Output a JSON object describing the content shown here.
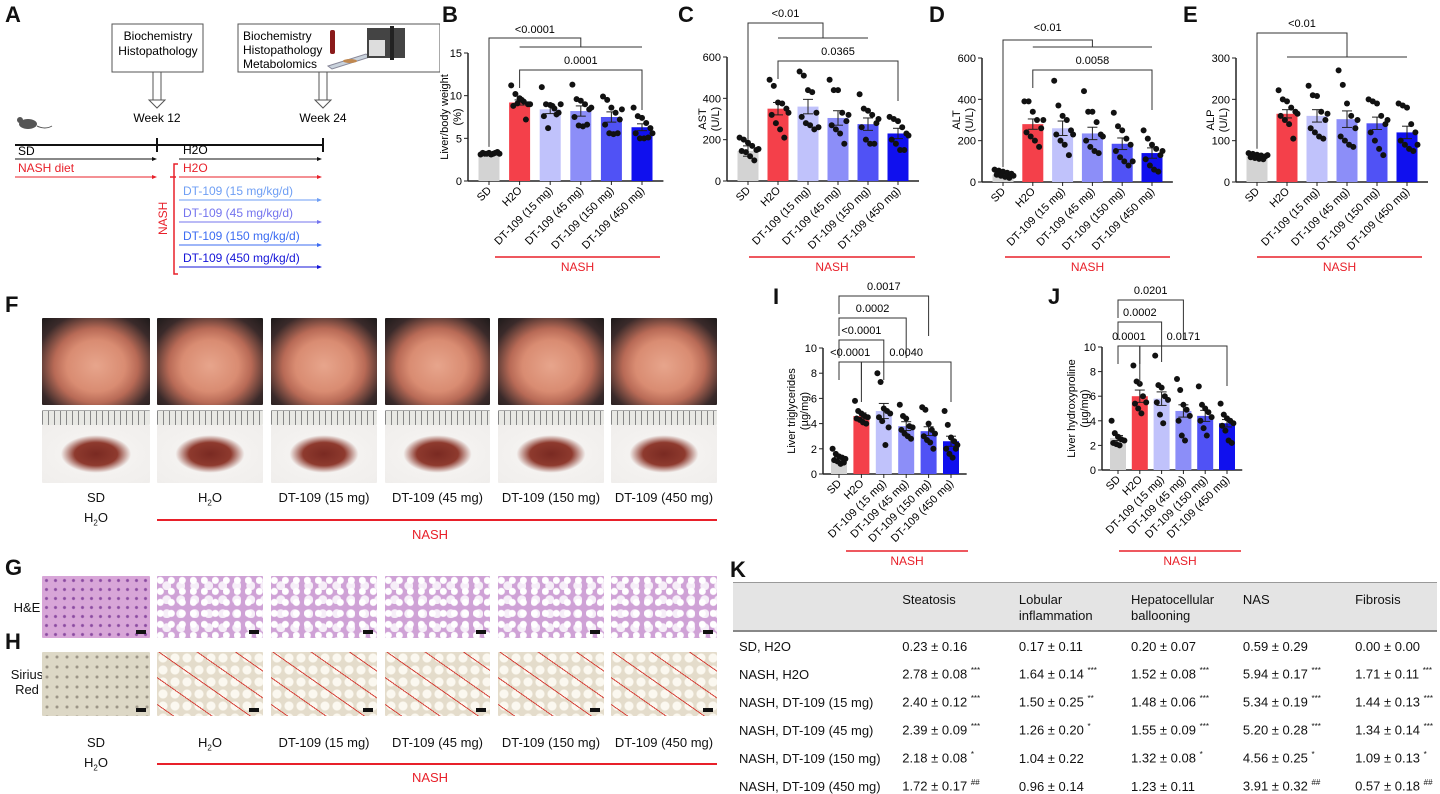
{
  "panel_letters": [
    "A",
    "B",
    "C",
    "D",
    "E",
    "F",
    "G",
    "H",
    "I",
    "J",
    "K"
  ],
  "colors": {
    "SD": "#d3d3d3",
    "H2O": "#f4404a",
    "15": "#c0c2fb",
    "45": "#8c8ef8",
    "150": "#5052f5",
    "450": "#1010ee",
    "nash": "#e8202a"
  },
  "timeline": {
    "box1": [
      "Biochemistry",
      "Histopathology"
    ],
    "box2": [
      "Biochemistry",
      "Histopathology",
      "Metabolomics"
    ],
    "week12": "Week 12",
    "week24": "Week 24",
    "sd": "SD",
    "nash_diet": "NASH diet",
    "h2o": "H2O",
    "nash": "NASH",
    "treatments": [
      {
        "label": "H2O",
        "color": "#e8202a"
      },
      {
        "label": "DT-109 (15 mg/kg/d)",
        "color": "#6e9ef4"
      },
      {
        "label": "DT-109 (45 mg/kg/d)",
        "color": "#7474ee"
      },
      {
        "label": "DT-109 (150 mg/kg/d)",
        "color": "#3c6cf2"
      },
      {
        "label": "DT-109 (450 mg/kg/d)",
        "color": "#1414d8"
      }
    ],
    "icons": [
      "mouse-icon",
      "blood-tube-icon",
      "slide-icon",
      "mass-spectrometer-icon"
    ]
  },
  "groups": [
    "SD",
    "H2O",
    "DT-109 (15 mg)",
    "DT-109 (45 mg)",
    "DT-109 (150 mg)",
    "DT-109 (450 mg)"
  ],
  "nash_label": "NASH",
  "chart_data": [
    {
      "id": "B",
      "type": "bar",
      "ylabel": [
        "Liver/body weight",
        "(%)"
      ],
      "ylim": [
        0,
        15
      ],
      "yticks": [
        0,
        5,
        10,
        15
      ],
      "categories": [
        "SD",
        "H2O",
        "DT-109 (15 mg)",
        "DT-109 (45 mg)",
        "DT-109 (150 mg)",
        "DT-109 (450 mg)"
      ],
      "values": [
        3.2,
        9.2,
        8.4,
        8.2,
        7.5,
        6.3
      ],
      "sem": [
        0.1,
        0.3,
        0.5,
        0.6,
        0.6,
        0.4
      ],
      "points": [
        [
          3.1,
          3.2,
          3.3,
          3.2,
          3.4,
          3.3,
          3.2,
          3.1,
          3.3,
          3.2
        ],
        [
          11.2,
          10.2,
          9.7,
          9.3,
          9.0,
          8.8,
          9.1,
          9.5,
          7.2,
          9.0
        ],
        [
          11.0,
          9.0,
          8.9,
          8.5,
          8.0,
          7.6,
          6.2,
          8.8,
          7.8,
          9.0
        ],
        [
          11.3,
          9.6,
          9.4,
          9.0,
          8.4,
          7.5,
          6.5,
          6.4,
          6.6,
          8.6
        ],
        [
          9.9,
          9.5,
          8.6,
          8.0,
          7.2,
          6.6,
          5.6,
          5.5,
          5.6,
          8.4
        ],
        [
          8.6,
          7.6,
          7.4,
          6.8,
          6.2,
          5.6,
          5.0,
          5.0,
          5.1,
          5.6
        ]
      ],
      "brackets": [
        {
          "from": 0,
          "to_group": [
            1,
            5
          ],
          "label": "<0.0001"
        },
        {
          "from": 1,
          "to": 5,
          "label": "0.0001"
        }
      ]
    },
    {
      "id": "C",
      "type": "bar",
      "ylabel": [
        "AST",
        "(U/L)"
      ],
      "ylim": [
        0,
        600
      ],
      "yticks": [
        0,
        200,
        400,
        600
      ],
      "categories": [
        "SD",
        "H2O",
        "DT-109 (15 mg)",
        "DT-109 (45 mg)",
        "DT-109 (150 mg)",
        "DT-109 (450 mg)"
      ],
      "values": [
        145,
        350,
        360,
        305,
        275,
        230
      ],
      "sem": [
        25,
        30,
        35,
        35,
        30,
        25
      ],
      "points": [
        [
          210,
          200,
          185,
          170,
          150,
          145,
          140,
          120,
          100,
          155
        ],
        [
          490,
          460,
          380,
          375,
          350,
          320,
          280,
          250,
          210,
          330
        ],
        [
          530,
          510,
          440,
          430,
          330,
          310,
          280,
          270,
          250,
          260
        ],
        [
          490,
          440,
          440,
          330,
          290,
          270,
          250,
          230,
          180,
          320
        ],
        [
          420,
          350,
          340,
          320,
          280,
          260,
          200,
          180,
          180,
          300
        ],
        [
          310,
          300,
          290,
          260,
          230,
          200,
          180,
          150,
          150,
          220
        ]
      ],
      "brackets": [
        {
          "from": 0,
          "to_group": [
            1,
            4
          ],
          "label": "<0.01"
        },
        {
          "from": 1,
          "to": 5,
          "label": "0.0365"
        }
      ]
    },
    {
      "id": "D",
      "type": "bar",
      "ylabel": [
        "ALT",
        "(U/L)"
      ],
      "ylim": [
        0,
        600
      ],
      "yticks": [
        0,
        200,
        400,
        600
      ],
      "categories": [
        "SD",
        "H2O",
        "DT-109 (15 mg)",
        "DT-109 (45 mg)",
        "DT-109 (150 mg)",
        "DT-109 (450 mg)"
      ],
      "values": [
        35,
        280,
        260,
        235,
        185,
        140
      ],
      "sem": [
        8,
        25,
        35,
        30,
        28,
        25
      ],
      "points": [
        [
          60,
          55,
          50,
          45,
          40,
          35,
          30,
          25,
          20,
          30
        ],
        [
          390,
          390,
          340,
          300,
          260,
          240,
          220,
          200,
          170,
          300
        ],
        [
          490,
          370,
          320,
          300,
          250,
          230,
          200,
          180,
          130,
          230
        ],
        [
          440,
          340,
          340,
          290,
          230,
          200,
          170,
          150,
          140,
          220
        ],
        [
          335,
          270,
          250,
          210,
          180,
          150,
          120,
          100,
          80,
          100
        ],
        [
          250,
          210,
          180,
          160,
          130,
          110,
          80,
          60,
          50,
          150
        ]
      ],
      "brackets": [
        {
          "from": 0,
          "to_group": [
            1,
            5
          ],
          "label": "<0.01"
        },
        {
          "from": 1,
          "to": 5,
          "label": "0.0058"
        }
      ]
    },
    {
      "id": "E",
      "type": "bar",
      "ylabel": [
        "ALP",
        "(U/L)"
      ],
      "ylim": [
        0,
        300
      ],
      "yticks": [
        0,
        100,
        200,
        300
      ],
      "categories": [
        "SD",
        "H2O",
        "DT-109 (15 mg)",
        "DT-109 (45 mg)",
        "DT-109 (150 mg)",
        "DT-109 (450 mg)"
      ],
      "values": [
        63,
        165,
        160,
        152,
        142,
        120
      ],
      "sem": [
        3,
        10,
        15,
        20,
        15,
        15
      ],
      "points": [
        [
          70,
          68,
          66,
          64,
          62,
          60,
          58,
          56,
          55,
          65
        ],
        [
          222,
          200,
          195,
          180,
          170,
          160,
          150,
          140,
          105,
          165
        ],
        [
          233,
          210,
          208,
          170,
          150,
          130,
          120,
          110,
          105,
          165
        ],
        [
          270,
          235,
          190,
          160,
          130,
          110,
          100,
          90,
          85,
          150
        ],
        [
          200,
          195,
          190,
          160,
          140,
          120,
          100,
          80,
          65,
          150
        ],
        [
          190,
          185,
          180,
          140,
          120,
          100,
          90,
          80,
          75,
          90
        ]
      ],
      "brackets": [
        {
          "from": 0,
          "to_group": [
            1,
            5
          ],
          "label": "<0.01"
        }
      ]
    },
    {
      "id": "I",
      "type": "bar",
      "ylabel": [
        "Liver triglycerides",
        "(µg/mg)"
      ],
      "ylim": [
        0,
        10
      ],
      "yticks": [
        0,
        2,
        4,
        6,
        8,
        10
      ],
      "categories": [
        "SD",
        "H2O",
        "DT-109 (15 mg)",
        "DT-109 (45 mg)",
        "DT-109 (150 mg)",
        "DT-109 (450 mg)"
      ],
      "values": [
        1.2,
        4.6,
        5.0,
        3.8,
        3.4,
        2.6
      ],
      "sem": [
        0.15,
        0.25,
        0.6,
        0.35,
        0.35,
        0.4
      ],
      "points": [
        [
          2.0,
          1.6,
          1.4,
          1.3,
          1.2,
          1.1,
          1.0,
          0.8,
          0.9
        ],
        [
          5.8,
          5.0,
          4.8,
          4.6,
          4.5,
          4.4,
          4.3,
          4.1,
          4.0
        ],
        [
          8.0,
          7.3,
          5.2,
          5.0,
          4.8,
          4.5,
          4.2,
          2.3,
          3.7
        ],
        [
          5.5,
          4.6,
          4.4,
          3.8,
          3.7,
          3.5,
          3.2,
          3.0,
          2.8
        ],
        [
          5.3,
          5.1,
          4.0,
          3.5,
          3.2,
          3.0,
          2.7,
          2.5,
          2.0
        ],
        [
          5.0,
          3.9,
          2.9,
          2.6,
          2.3,
          2.0,
          1.6,
          1.3,
          2.0
        ]
      ],
      "brackets": [
        {
          "from": 0,
          "to": 1,
          "label": "<0.0001"
        },
        {
          "from": 1,
          "to": 5,
          "label": "0.0040"
        },
        {
          "from": 0,
          "to": 2,
          "label": "<0.0001"
        },
        {
          "from": 0,
          "to": 3,
          "label": "0.0002"
        },
        {
          "from": 0,
          "to": 4,
          "label": "0.0017"
        }
      ]
    },
    {
      "id": "J",
      "type": "bar",
      "ylabel": [
        "Liver hydroxyproline",
        "(µg/mg)"
      ],
      "ylim": [
        0,
        10
      ],
      "yticks": [
        0,
        2,
        4,
        6,
        8,
        10
      ],
      "categories": [
        "SD",
        "H2O",
        "DT-109 (15 mg)",
        "DT-109 (45 mg)",
        "DT-109 (150 mg)",
        "DT-109 (450 mg)"
      ],
      "values": [
        2.6,
        6.0,
        5.8,
        4.8,
        4.4,
        3.8
      ],
      "sem": [
        0.2,
        0.5,
        0.55,
        0.5,
        0.45,
        0.3
      ],
      "points": [
        [
          4.0,
          3.0,
          2.7,
          2.5,
          2.4,
          2.2,
          2.1,
          2.0
        ],
        [
          8.5,
          7.2,
          7.0,
          6.0,
          5.5,
          5.4,
          5.0,
          4.6
        ],
        [
          9.3,
          6.9,
          6.7,
          6.0,
          5.7,
          5.5,
          4.5,
          3.8
        ],
        [
          7.4,
          6.5,
          5.3,
          4.9,
          4.4,
          4.0,
          2.8,
          2.4
        ],
        [
          6.8,
          5.3,
          5.0,
          4.7,
          4.3,
          4.0,
          3.4,
          2.8
        ],
        [
          5.4,
          4.5,
          4.2,
          4.0,
          3.8,
          3.6,
          3.2,
          2.4,
          2.2
        ]
      ],
      "brackets": [
        {
          "from": 0,
          "to": 1,
          "label": "0.0001"
        },
        {
          "from": 1,
          "to": 5,
          "label": "0.0171"
        },
        {
          "from": 0,
          "to": 2,
          "label": "0.0002"
        },
        {
          "from": 0,
          "to": 3,
          "label": "0.0201"
        }
      ]
    }
  ],
  "photos": {
    "labels": [
      "SD",
      "H2O",
      "DT-109 (15 mg)",
      "DT-109 (45 mg)",
      "DT-109 (150 mg)",
      "DT-109 (450 mg)"
    ],
    "sd_sub": "H2O",
    "he_label": "H&E",
    "sr_label": [
      "Sirius",
      "Red"
    ]
  },
  "table": {
    "headers": [
      "",
      "Steatosis",
      "Lobular inflammation",
      "Hepatocellular ballooning",
      "NAS",
      "Fibrosis"
    ],
    "rows": [
      {
        "group": "SD, H2O",
        "cells": [
          [
            "0.23 ± 0.16",
            ""
          ],
          [
            "0.17 ± 0.11",
            ""
          ],
          [
            "0.20 ± 0.07",
            ""
          ],
          [
            "0.59 ± 0.29",
            ""
          ],
          [
            "0.00 ± 0.00",
            ""
          ]
        ]
      },
      {
        "group": "NASH, H2O",
        "cells": [
          [
            "2.78 ± 0.08",
            "***"
          ],
          [
            "1.64 ± 0.14",
            "***"
          ],
          [
            "1.52 ± 0.08",
            "***"
          ],
          [
            "5.94 ± 0.17",
            "***"
          ],
          [
            "1.71 ± 0.11",
            "***"
          ]
        ]
      },
      {
        "group": "NASH, DT-109 (15 mg)",
        "cells": [
          [
            "2.40 ± 0.12",
            "***"
          ],
          [
            "1.50 ± 0.25",
            "**"
          ],
          [
            "1.48 ± 0.06",
            "***"
          ],
          [
            "5.34 ± 0.19",
            "***"
          ],
          [
            "1.44 ± 0.13",
            "***"
          ]
        ]
      },
      {
        "group": "NASH, DT-109 (45 mg)",
        "cells": [
          [
            "2.39 ± 0.09",
            "***"
          ],
          [
            "1.26 ± 0.20",
            "*"
          ],
          [
            "1.55 ± 0.09",
            "***"
          ],
          [
            "5.20 ± 0.28",
            "***"
          ],
          [
            "1.34 ± 0.14",
            "***"
          ]
        ]
      },
      {
        "group": "NASH, DT-109 (150 mg)",
        "cells": [
          [
            "2.18 ± 0.08",
            "*"
          ],
          [
            "1.04 ± 0.22",
            ""
          ],
          [
            "1.32 ± 0.08",
            "*"
          ],
          [
            "4.56 ± 0.25",
            "*"
          ],
          [
            "1.09 ± 0.13",
            "*"
          ]
        ]
      },
      {
        "group": "NASH, DT-109 (450 mg)",
        "cells": [
          [
            "1.72 ± 0.17",
            "##"
          ],
          [
            "0.96 ± 0.14",
            ""
          ],
          [
            "1.23 ± 0.11",
            ""
          ],
          [
            "3.91 ± 0.32",
            "##"
          ],
          [
            "0.57 ± 0.18",
            "##"
          ]
        ]
      }
    ]
  }
}
